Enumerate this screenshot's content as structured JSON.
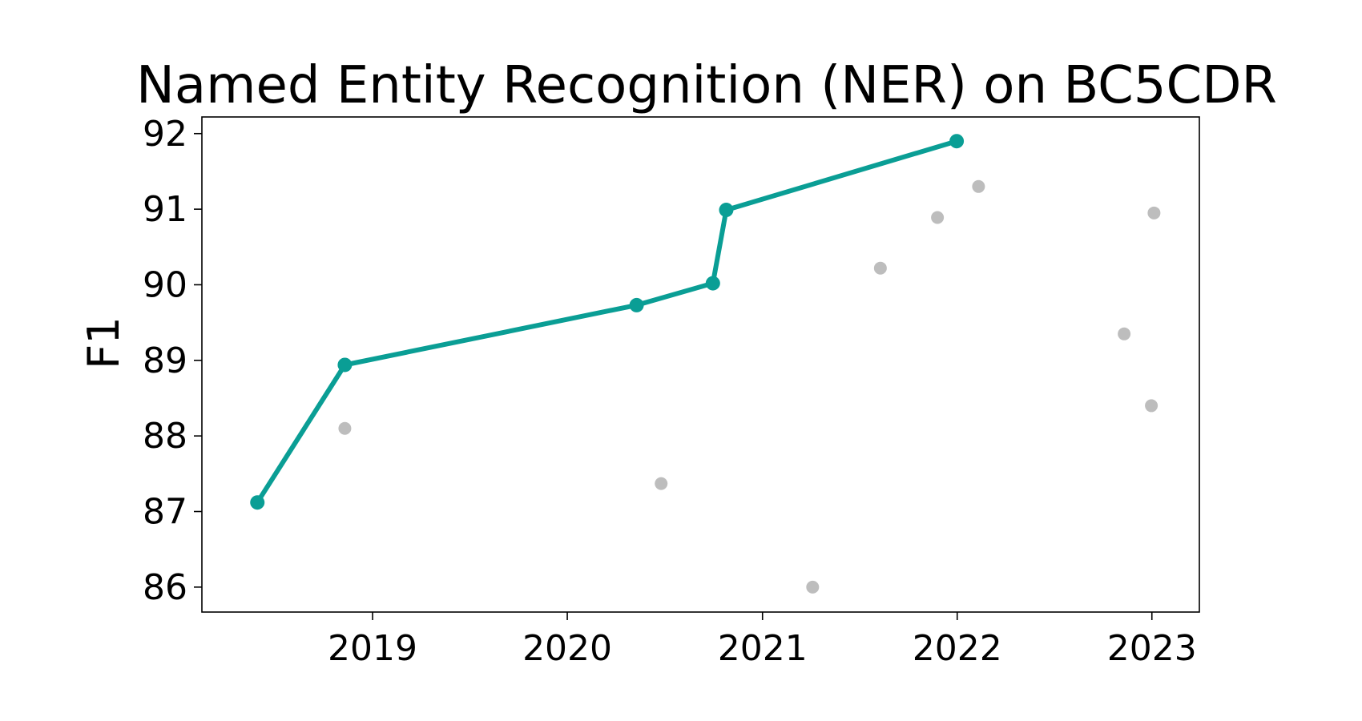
{
  "chart_data": {
    "type": "scatter",
    "title": "Named Entity Recognition (NER) on BC5CDR",
    "xlabel": "",
    "ylabel": "F1",
    "x_is_date": true,
    "xlim": [
      "2018-02-15",
      "2023-03-31"
    ],
    "ylim": [
      85.67,
      92.22
    ],
    "x_ticks": [
      {
        "value": "2019-01-01",
        "label": "2019"
      },
      {
        "value": "2020-01-01",
        "label": "2020"
      },
      {
        "value": "2021-01-01",
        "label": "2021"
      },
      {
        "value": "2022-01-01",
        "label": "2022"
      },
      {
        "value": "2023-01-01",
        "label": "2023"
      }
    ],
    "y_ticks": [
      86,
      87,
      88,
      89,
      90,
      91,
      92
    ],
    "grid": false,
    "legend": "none",
    "colors": {
      "sota": "#0a9e95",
      "other": "#bdbdbd"
    },
    "series": [
      {
        "role": "state-of-the-art",
        "style": "line+markers",
        "color": "#0a9e95",
        "points": [
          {
            "x": "2018-05-30",
            "y": 87.12
          },
          {
            "x": "2018-11-10",
            "y": 88.94
          },
          {
            "x": "2020-05-10",
            "y": 89.73
          },
          {
            "x": "2020-09-30",
            "y": 90.02
          },
          {
            "x": "2020-10-25",
            "y": 90.99
          },
          {
            "x": "2021-12-31",
            "y": 91.9
          }
        ]
      },
      {
        "role": "other",
        "style": "markers",
        "color": "#bdbdbd",
        "points": [
          {
            "x": "2018-11-10",
            "y": 88.1
          },
          {
            "x": "2020-06-25",
            "y": 87.37
          },
          {
            "x": "2021-04-05",
            "y": 86.0
          },
          {
            "x": "2021-08-10",
            "y": 90.22
          },
          {
            "x": "2021-11-25",
            "y": 90.89
          },
          {
            "x": "2022-02-10",
            "y": 91.3
          },
          {
            "x": "2022-11-10",
            "y": 89.35
          },
          {
            "x": "2022-12-31",
            "y": 88.4
          },
          {
            "x": "2023-01-05",
            "y": 90.95
          }
        ]
      }
    ]
  }
}
